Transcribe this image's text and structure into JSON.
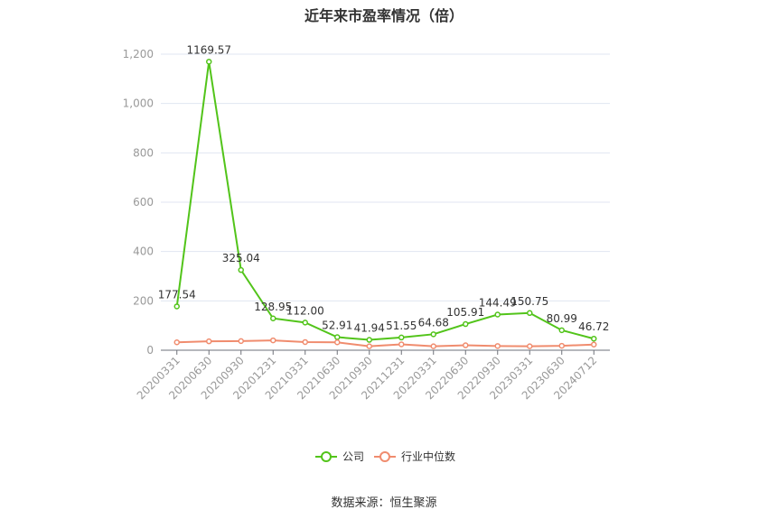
{
  "chart_data": {
    "type": "line",
    "title": "近年来市盈率情况（倍）",
    "categories": [
      "20200331",
      "20200630",
      "20200930",
      "20201231",
      "20210331",
      "20210630",
      "20210930",
      "20211231",
      "20220331",
      "20220630",
      "20220930",
      "20230331",
      "20230630",
      "20240712"
    ],
    "series": [
      {
        "name": "公司",
        "color": "#52c41a",
        "values": [
          177.54,
          1169.57,
          325.04,
          128.95,
          112.0,
          52.91,
          41.94,
          51.55,
          64.68,
          105.91,
          144.49,
          150.75,
          80.99,
          46.72
        ]
      },
      {
        "name": "行业中位数",
        "color": "#f08c6e",
        "values": [
          32,
          36,
          37,
          40,
          33,
          32,
          16,
          24,
          16,
          20,
          17,
          16,
          18,
          23
        ]
      }
    ],
    "data_labels": [
      "177.54",
      "1169.57",
      "325.04",
      "128.95",
      "112.00",
      "52.91",
      "41.94",
      "51.55",
      "64.68",
      "105.91",
      "144.49",
      "150.75",
      "80.99",
      "46.72"
    ],
    "yticks": [
      "0",
      "200",
      "400",
      "600",
      "800",
      "1,000",
      "1,200"
    ],
    "ylim": [
      0,
      1200
    ],
    "grid": true,
    "legend_position": "bottom"
  },
  "source_text": "数据来源：恒生聚源"
}
